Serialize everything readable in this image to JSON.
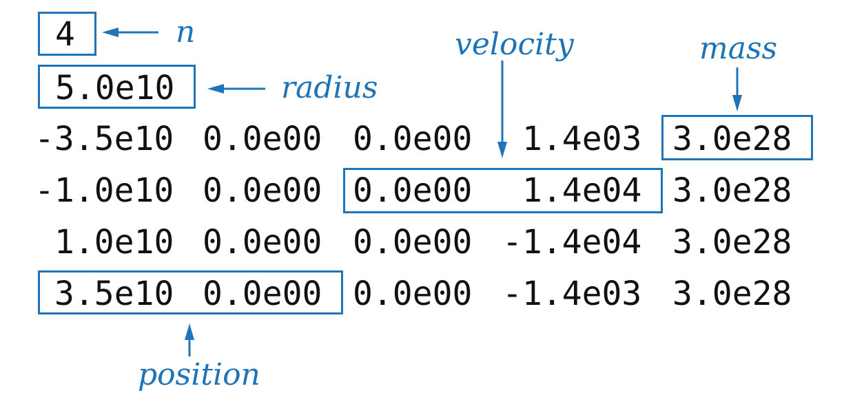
{
  "header": {
    "n_value": "4",
    "radius_value": "5.0e10"
  },
  "rows": [
    {
      "x": "-3.5e10",
      "y": "0.0e00",
      "vx": "0.0e00",
      "vy": "1.4e03",
      "mass": "3.0e28"
    },
    {
      "x": "-1.0e10",
      "y": "0.0e00",
      "vx": "0.0e00",
      "vy": "1.4e04",
      "mass": "3.0e28"
    },
    {
      "x": "1.0e10",
      "y": "0.0e00",
      "vx": "0.0e00",
      "vy": "-1.4e04",
      "mass": "3.0e28"
    },
    {
      "x": "3.5e10",
      "y": "0.0e00",
      "vx": "0.0e00",
      "vy": "-1.4e03",
      "mass": "3.0e28"
    }
  ],
  "annotations": {
    "n": "n",
    "radius": "radius",
    "velocity": "velocity",
    "mass": "mass",
    "position": "position"
  },
  "colors": {
    "accent": "#1f73b7",
    "text": "#111111"
  }
}
